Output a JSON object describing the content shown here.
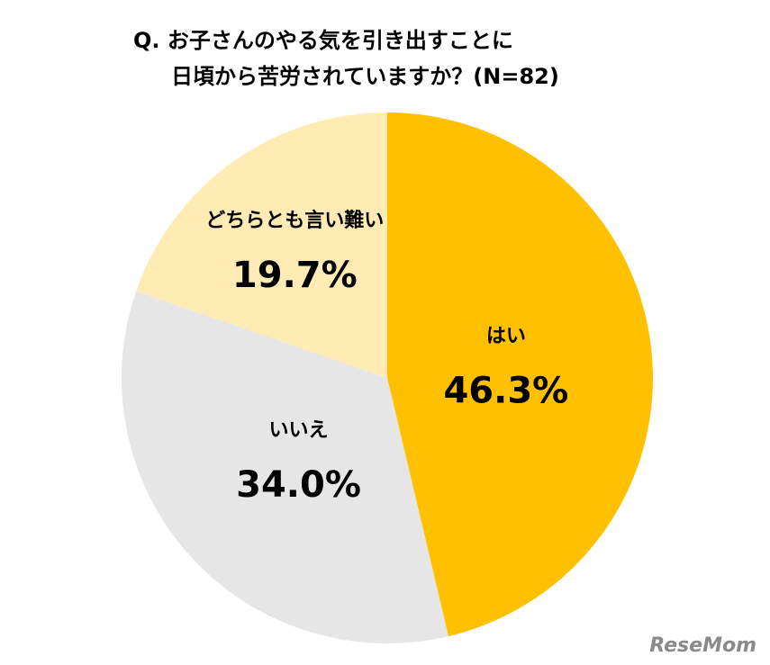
{
  "chart_data": {
    "type": "pie",
    "title": [
      "Q. お子さんのやる気を引き出すことに",
      "日頃から苦労されていますか？(N=82)"
    ],
    "categories": [
      "はい",
      "いいえ",
      "どちらとも言い難い"
    ],
    "values": [
      46.3,
      34.0,
      19.7
    ],
    "value_labels": [
      "46.3%",
      "34.0%",
      "19.7%"
    ],
    "colors": [
      "#FFC000",
      "#E6E6E6",
      "#FFEBB3"
    ],
    "watermark": "ReseMom"
  }
}
